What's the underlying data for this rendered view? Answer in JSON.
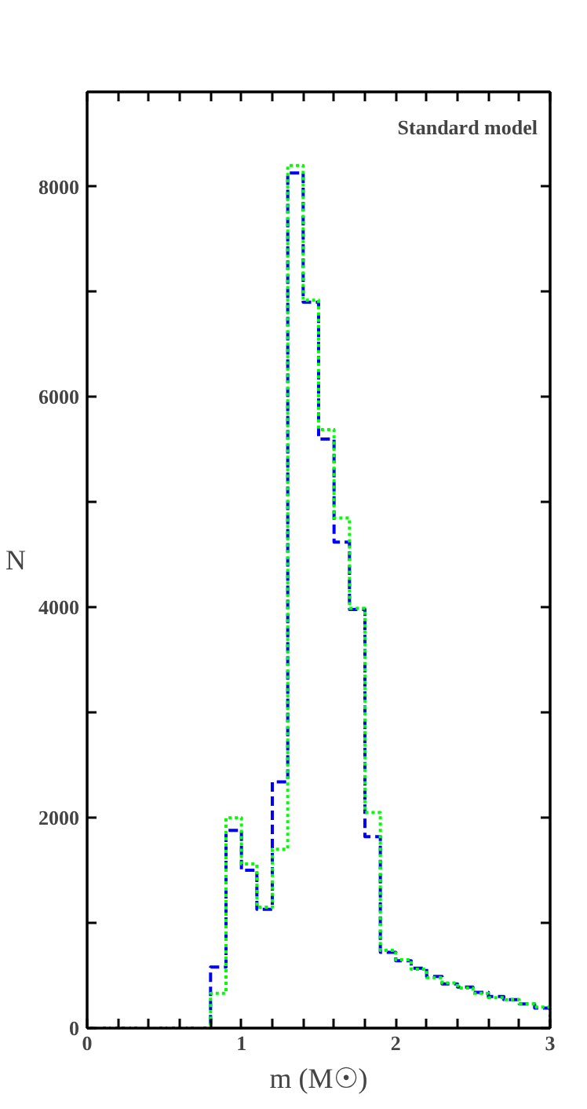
{
  "chart_data": {
    "type": "histogram",
    "xlabel": "m (M☉)",
    "ylabel": "N",
    "annotations": [
      "Standard model"
    ],
    "bins": [
      0,
      0.1,
      0.2,
      0.3,
      0.4,
      0.5,
      0.6,
      0.7,
      0.8,
      0.9,
      1.0,
      1.1,
      1.2,
      1.3,
      1.4,
      1.5,
      1.6,
      1.7,
      1.8,
      1.9,
      2.0,
      2.1,
      2.2,
      2.3,
      2.4,
      2.5,
      2.6,
      2.7,
      2.8,
      2.9,
      3.0
    ],
    "series": [
      {
        "color": "#0000ff",
        "line_style": "dashed",
        "values": [
          0,
          0,
          0,
          0,
          0,
          0,
          0,
          0,
          580,
          1880,
          1500,
          1130,
          2340,
          8130,
          6900,
          5600,
          4620,
          3980,
          1820,
          720,
          640,
          570,
          490,
          420,
          390,
          340,
          300,
          270,
          230,
          190
        ]
      },
      {
        "color": "#00ff00",
        "line_style": "dotted",
        "values": [
          0,
          0,
          0,
          0,
          0,
          0,
          0,
          0,
          330,
          2000,
          1560,
          1150,
          1700,
          8200,
          6920,
          5690,
          4850,
          3990,
          2050,
          740,
          650,
          560,
          480,
          430,
          380,
          330,
          290,
          270,
          230,
          200
        ]
      }
    ],
    "xlim": [
      0,
      3
    ],
    "ylim": [
      0,
      8900
    ],
    "xticks": [
      0,
      {
        "value": 0.2,
        "label": null
      },
      {
        "value": 0.4,
        "label": null
      },
      {
        "value": 0.6,
        "label": null
      },
      {
        "value": 0.8,
        "label": null
      },
      1,
      {
        "value": 1.2,
        "label": null
      },
      {
        "value": 1.4,
        "label": null
      },
      {
        "value": 1.6,
        "label": null
      },
      {
        "value": 1.8,
        "label": null
      },
      2,
      {
        "value": 2.2,
        "label": null
      },
      {
        "value": 2.4,
        "label": null
      },
      {
        "value": 2.6,
        "label": null
      },
      {
        "value": 2.8,
        "label": null
      },
      3
    ],
    "yticks": [
      0,
      {
        "value": 1000,
        "label": null
      },
      2000,
      {
        "value": 3000,
        "label": null
      },
      4000,
      {
        "value": 5000,
        "label": null
      },
      6000,
      {
        "value": 7000,
        "label": null
      },
      8000
    ],
    "grid": false
  }
}
